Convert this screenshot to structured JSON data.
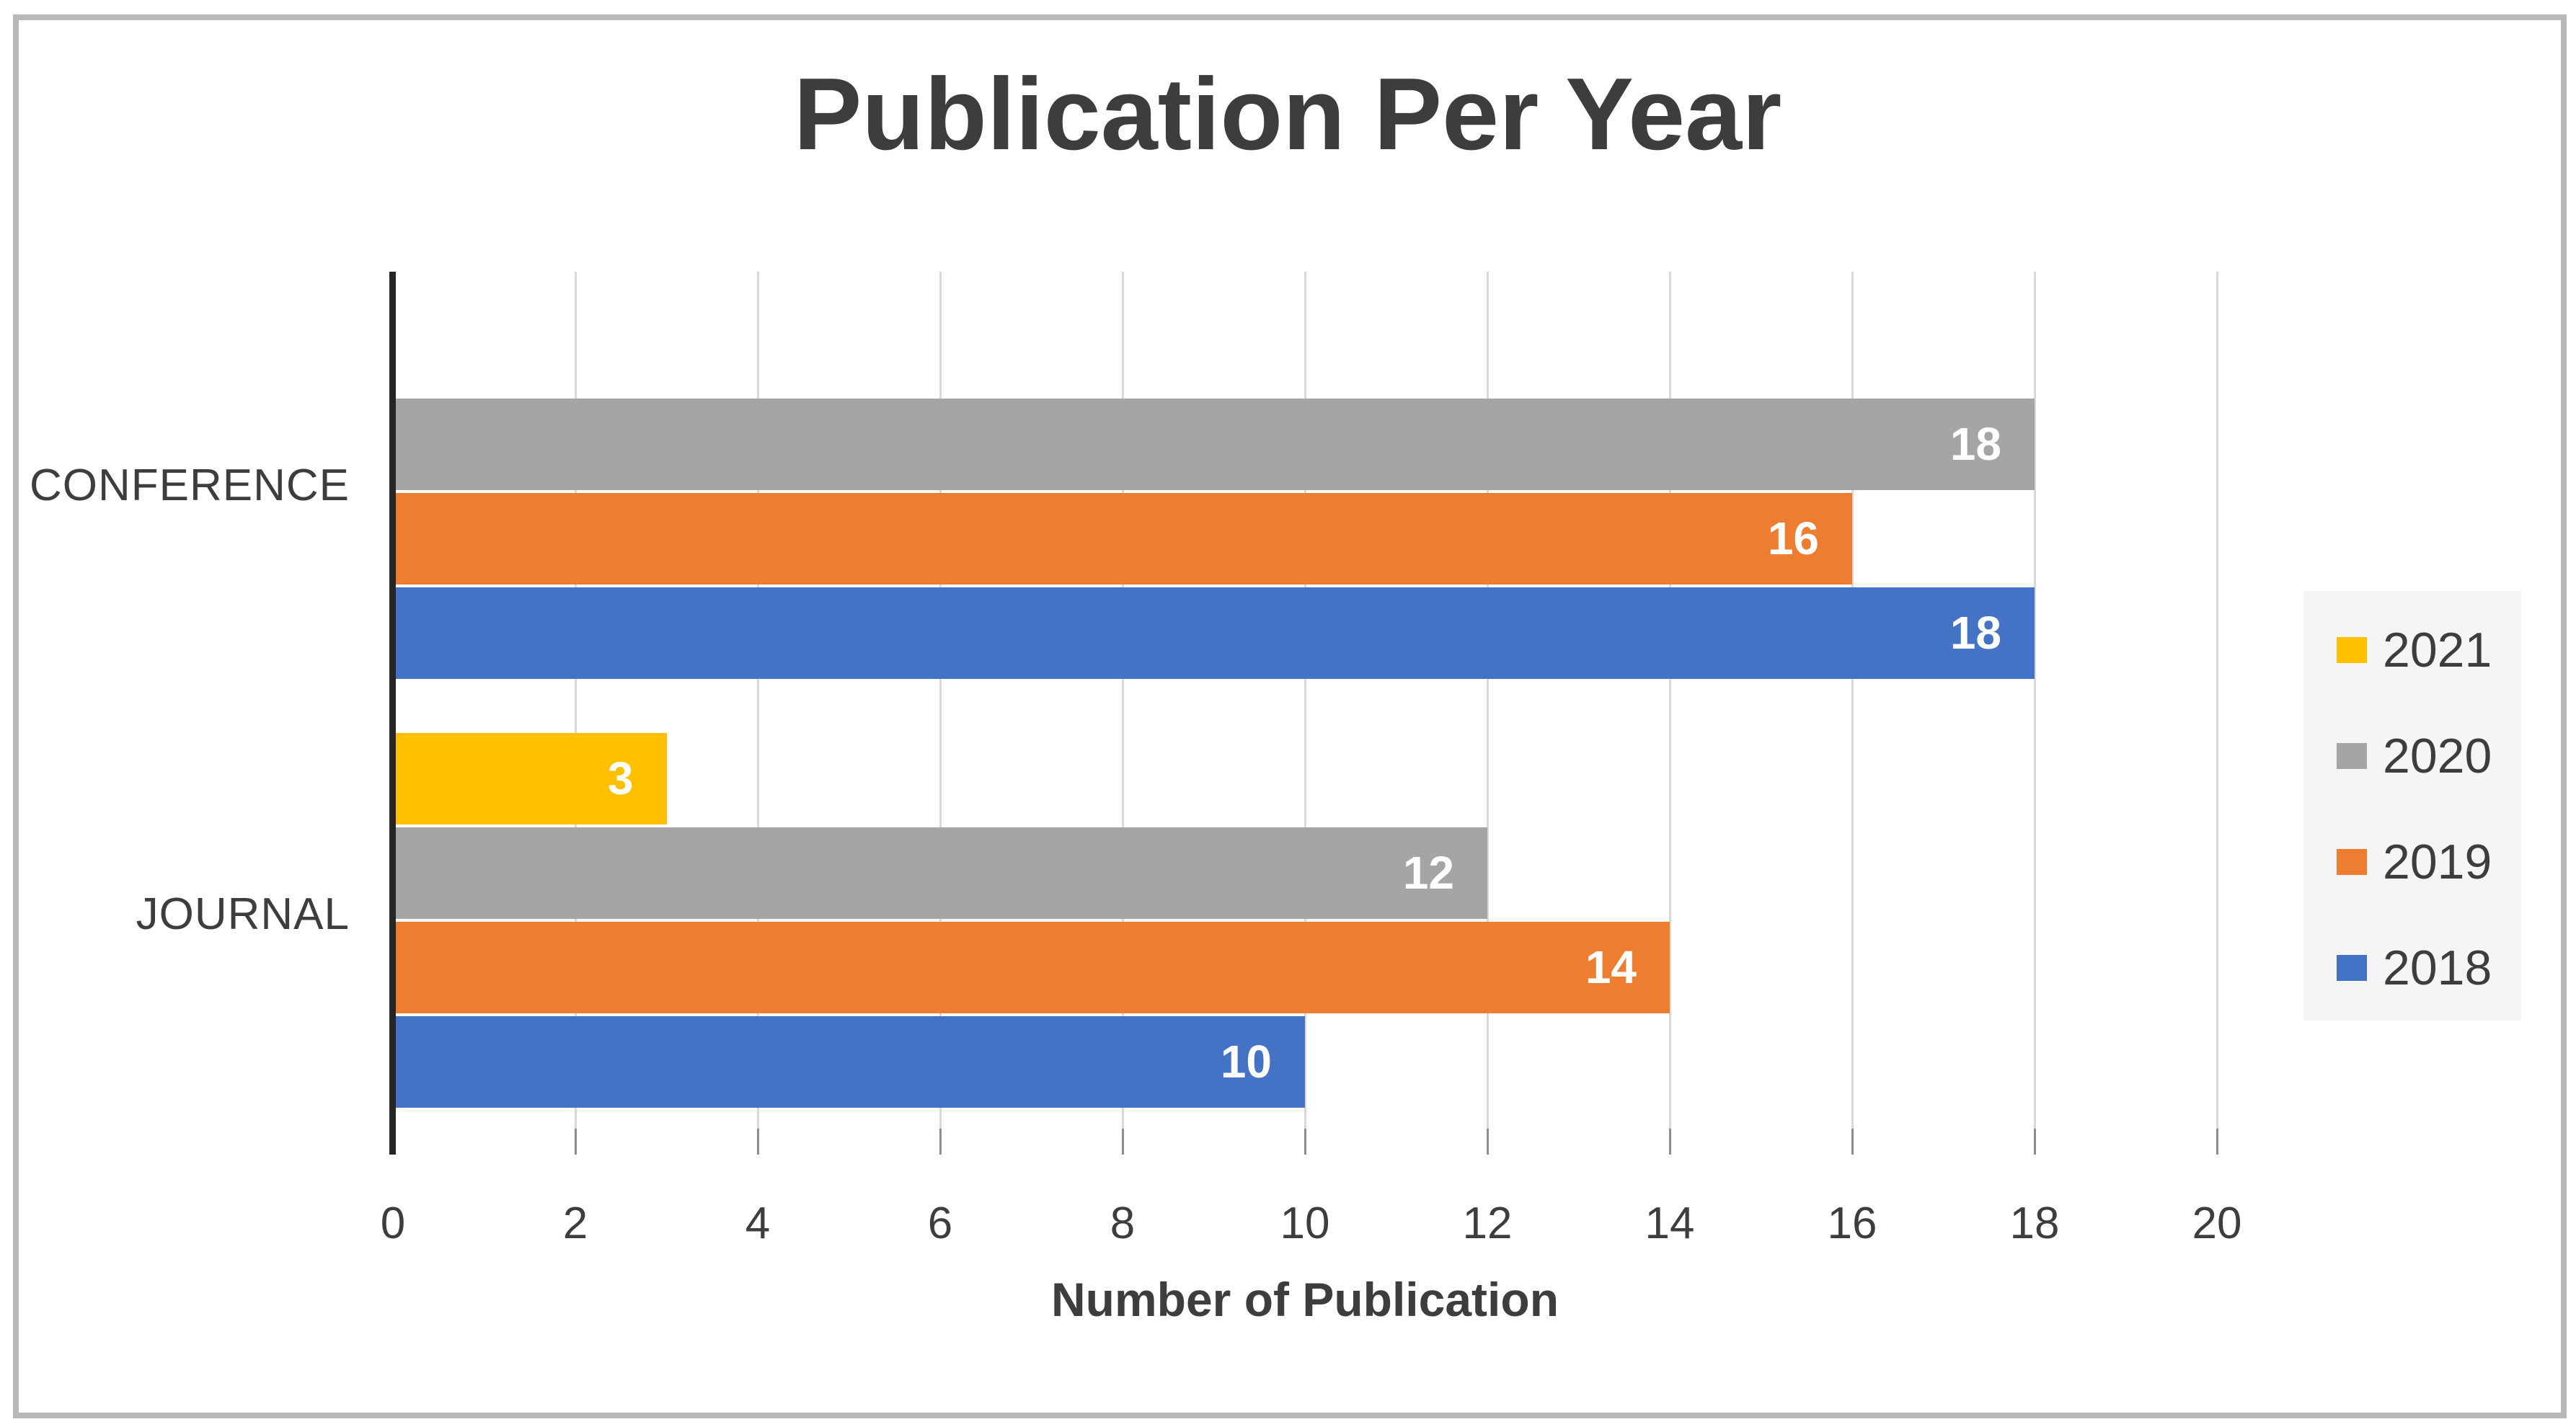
{
  "chart_data": {
    "type": "bar",
    "orientation": "horizontal",
    "title": "Publication Per Year",
    "xlabel": "Number of Publication",
    "ylabel": "",
    "categories": [
      "CONFERENCE",
      "JOURNAL"
    ],
    "series": [
      {
        "name": "2021",
        "color": "#FFC000",
        "values": [
          null,
          3
        ]
      },
      {
        "name": "2020",
        "color": "#A5A5A5",
        "values": [
          18,
          12
        ]
      },
      {
        "name": "2019",
        "color": "#ED7D31",
        "values": [
          16,
          14
        ]
      },
      {
        "name": "2018",
        "color": "#4472C4",
        "values": [
          18,
          10
        ]
      }
    ],
    "xlim": [
      0,
      20
    ],
    "xticks": [
      "0",
      "2",
      "4",
      "6",
      "8",
      "10",
      "12",
      "14",
      "16",
      "18",
      "20"
    ],
    "grid": true,
    "legend_position": "right",
    "data_labels_position": "inside-end"
  },
  "style": {
    "series_yellow": "#FFC000",
    "series_gray": "#A5A5A5",
    "series_orange": "#ED7D31",
    "series_blue": "#4472C4",
    "gridline_color": "#D9D9D9",
    "axis_line_color": "#262626",
    "tick_color": "#8E8E8E",
    "text_color": "#3D3D3D",
    "data_label_color": "#FFFFFF",
    "legend_background": "#F5F5F5",
    "frame_border_color": "#B8B8B8",
    "background": "#FFFFFF"
  }
}
